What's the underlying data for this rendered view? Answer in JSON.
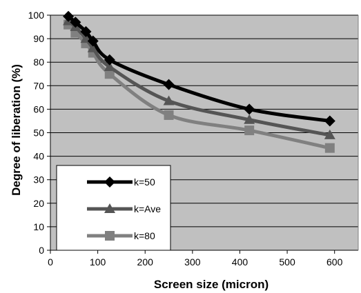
{
  "chart_data": {
    "type": "line",
    "title": "",
    "xlabel": "Screen size (micron)",
    "ylabel": "Degree of liberation (%)",
    "xlim": [
      0,
      650
    ],
    "ylim": [
      0,
      100
    ],
    "xticks": [
      0,
      100,
      200,
      300,
      400,
      500,
      600
    ],
    "yticks": [
      0,
      10,
      20,
      30,
      40,
      50,
      60,
      70,
      80,
      90,
      100
    ],
    "grid": "horizontal",
    "plot_background": "#c0c0c0",
    "legend_placement": "bottom-left",
    "series": [
      {
        "name": "k=50",
        "color": "#000000",
        "marker": "diamond",
        "x": [
          38,
          53,
          75,
          90,
          125,
          250,
          420,
          590
        ],
        "y": [
          99.5,
          97,
          93,
          89,
          81,
          70.5,
          60,
          55
        ]
      },
      {
        "name": "k=Ave",
        "color": "#555555",
        "marker": "triangle",
        "x": [
          38,
          53,
          75,
          90,
          125,
          250,
          420,
          590
        ],
        "y": [
          97.5,
          95,
          90,
          86,
          78,
          63.5,
          55.5,
          49
        ]
      },
      {
        "name": "k=80",
        "color": "#808080",
        "marker": "square",
        "x": [
          38,
          53,
          75,
          90,
          125,
          250,
          420,
          590
        ],
        "y": [
          96,
          92.5,
          88,
          84,
          75,
          57.5,
          51,
          43.5
        ]
      }
    ]
  }
}
